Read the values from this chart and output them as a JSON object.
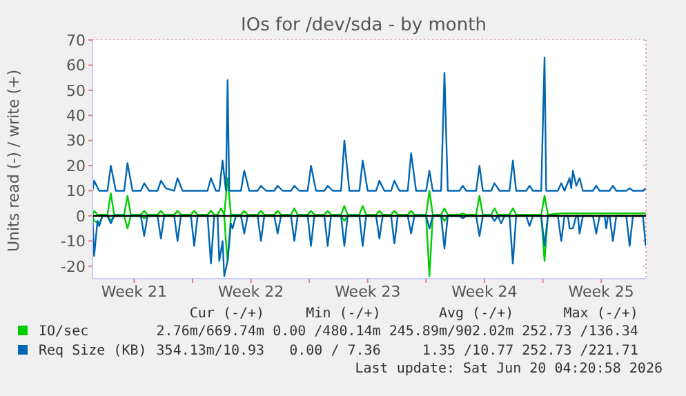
{
  "chart_data": {
    "type": "line",
    "title": "IOs for /dev/sda - by month",
    "ylabel": "Units read (-) / write (+)",
    "xlim": [
      "2026-05-18T00:00",
      "2026-06-20T04:20"
    ],
    "xticks": [
      {
        "value": "2026-05-20T12:00",
        "label": "Week 21"
      },
      {
        "value": "2026-05-24T00:00",
        "label": null
      },
      {
        "value": "2026-05-27T12:00",
        "label": "Week 22"
      },
      {
        "value": "2026-05-31T00:00",
        "label": null
      },
      {
        "value": "2026-06-03T12:00",
        "label": "Week 23"
      },
      {
        "value": "2026-06-07T00:00",
        "label": null
      },
      {
        "value": "2026-06-10T12:00",
        "label": "Week 24"
      },
      {
        "value": "2026-06-14T00:00",
        "label": null
      },
      {
        "value": "2026-06-17T12:00",
        "label": "Week 25"
      }
    ],
    "ylim": [
      -25,
      70
    ],
    "yticks": [
      -20,
      -10,
      0,
      10,
      20,
      30,
      40,
      50,
      60,
      70
    ],
    "grid": true,
    "legend": "bottom",
    "line_style": "solid",
    "marker": "none",
    "ref_lines": [
      {
        "axis": "y",
        "value": 0,
        "color": "#000000"
      }
    ],
    "series": [
      {
        "name": "IO/sec",
        "color": "#00cc00",
        "x": [
          "2026-05-18T00:00",
          "2026-05-18T02:24",
          "2026-05-18T07:12",
          "2026-05-18T21:36",
          "2026-05-19T02:24",
          "2026-05-19T07:12",
          "2026-05-19T21:36",
          "2026-05-20T02:24",
          "2026-05-20T07:12",
          "2026-05-20T21:36",
          "2026-05-21T02:24",
          "2026-05-21T07:12",
          "2026-05-21T21:36",
          "2026-05-22T02:24",
          "2026-05-22T07:12",
          "2026-05-22T21:36",
          "2026-05-23T02:24",
          "2026-05-23T07:12",
          "2026-05-23T21:36",
          "2026-05-24T02:24",
          "2026-05-24T07:12",
          "2026-05-24T21:36",
          "2026-05-25T02:24",
          "2026-05-25T07:12",
          "2026-05-25T12:00",
          "2026-05-25T16:48",
          "2026-05-25T21:36",
          "2026-05-26T02:24",
          "2026-05-26T07:12",
          "2026-05-26T21:36",
          "2026-05-27T02:24",
          "2026-05-27T07:12",
          "2026-05-27T21:36",
          "2026-05-28T02:24",
          "2026-05-28T07:12",
          "2026-05-28T21:36",
          "2026-05-29T02:24",
          "2026-05-29T07:12",
          "2026-05-29T21:36",
          "2026-05-30T02:24",
          "2026-05-30T07:12",
          "2026-05-30T21:36",
          "2026-05-31T02:24",
          "2026-05-31T07:12",
          "2026-05-31T21:36",
          "2026-06-01T02:24",
          "2026-06-01T07:12",
          "2026-06-01T21:36",
          "2026-06-02T02:24",
          "2026-06-02T07:12",
          "2026-06-03T00:00",
          "2026-06-03T04:48",
          "2026-06-03T09:36",
          "2026-06-04T00:00",
          "2026-06-04T04:48",
          "2026-06-04T09:36",
          "2026-06-04T21:36",
          "2026-06-05T02:24",
          "2026-06-05T07:12",
          "2026-06-05T21:36",
          "2026-06-06T02:24",
          "2026-06-06T07:12",
          "2026-06-07T00:00",
          "2026-06-07T04:48",
          "2026-06-07T09:36",
          "2026-06-07T21:36",
          "2026-06-08T02:24",
          "2026-06-08T07:12",
          "2026-06-09T00:00",
          "2026-06-09T04:48",
          "2026-06-09T09:36",
          "2026-06-10T00:00",
          "2026-06-10T04:48",
          "2026-06-10T09:36",
          "2026-06-10T21:36",
          "2026-06-11T02:24",
          "2026-06-11T07:12",
          "2026-06-12T00:00",
          "2026-06-12T04:48",
          "2026-06-12T09:36",
          "2026-06-13T21:36",
          "2026-06-14T02:24",
          "2026-06-14T07:12",
          "2026-06-15T02:24",
          "2026-06-15T19:12",
          "2026-06-17T04:48",
          "2026-06-20T04:00"
        ],
        "values": [
          0.5,
          2,
          0.5,
          0.5,
          9,
          0.5,
          0.5,
          8,
          0.5,
          0.5,
          2,
          0.5,
          0.5,
          2,
          0.5,
          0.5,
          2,
          0.5,
          0.5,
          2,
          0.5,
          0.5,
          2,
          0.5,
          0.5,
          3,
          0.5,
          15,
          0.5,
          0.5,
          2,
          0.5,
          0.5,
          2,
          0.5,
          0.5,
          2,
          0.5,
          0.5,
          3,
          0.5,
          0.5,
          2,
          0.5,
          0.5,
          2,
          0.5,
          0.5,
          4,
          0.5,
          0.5,
          4,
          0.5,
          0.5,
          2,
          0.5,
          0.5,
          2,
          0.5,
          0.5,
          2,
          0.5,
          0.5,
          10,
          0.5,
          0.5,
          3,
          0.5,
          0.5,
          1,
          0.5,
          0.5,
          8,
          0.5,
          0.5,
          3,
          0.5,
          0.5,
          3,
          0.5,
          0.5,
          8,
          0.5,
          1,
          1,
          1,
          1
        ]
      },
      {
        "color": "#00cc00",
        "x": [
          "2026-05-18T00:00",
          "2026-05-18T02:24",
          "2026-05-18T09:36",
          "2026-05-18T14:24",
          "2026-05-18T21:36",
          "2026-05-19T02:24",
          "2026-05-19T07:12",
          "2026-05-19T21:36",
          "2026-05-20T02:24",
          "2026-05-20T07:12",
          "2026-05-20T21:36",
          "2026-05-21T02:24",
          "2026-05-21T07:12",
          "2026-05-25T21:36",
          "2026-05-26T00:00",
          "2026-05-26T02:24",
          "2026-05-26T07:12",
          "2026-06-01T21:36",
          "2026-06-02T02:24",
          "2026-06-02T07:12",
          "2026-06-07T00:00",
          "2026-06-07T04:48",
          "2026-06-07T09:36",
          "2026-06-07T21:36",
          "2026-06-08T02:24",
          "2026-06-08T07:12",
          "2026-06-13T21:36",
          "2026-06-14T02:24",
          "2026-06-14T07:12",
          "2026-06-20T04:00"
        ],
        "values": [
          0,
          -2,
          -3,
          0,
          0,
          -2,
          0,
          0,
          -5,
          0,
          0,
          -1,
          0,
          0,
          -10,
          -18,
          0,
          0,
          -2,
          0,
          0,
          -24,
          0,
          0,
          -2,
          0,
          0,
          -18,
          0,
          0
        ]
      },
      {
        "name": "Req Size (KB)",
        "color": "#0066b3",
        "x": [
          "2026-05-18T00:00",
          "2026-05-18T02:24",
          "2026-05-18T09:36",
          "2026-05-18T21:36",
          "2026-05-19T02:24",
          "2026-05-19T09:36",
          "2026-05-19T21:36",
          "2026-05-20T02:24",
          "2026-05-20T09:36",
          "2026-05-20T21:36",
          "2026-05-21T02:24",
          "2026-05-21T09:36",
          "2026-05-21T21:36",
          "2026-05-22T02:24",
          "2026-05-22T09:36",
          "2026-05-22T21:36",
          "2026-05-23T02:24",
          "2026-05-23T09:36",
          "2026-05-24T21:36",
          "2026-05-25T02:24",
          "2026-05-25T09:36",
          "2026-05-25T14:24",
          "2026-05-25T19:12",
          "2026-05-26T00:00",
          "2026-05-26T02:24",
          "2026-05-26T04:48",
          "2026-05-26T21:36",
          "2026-05-27T02:24",
          "2026-05-27T09:36",
          "2026-05-27T21:36",
          "2026-05-28T02:24",
          "2026-05-28T09:36",
          "2026-05-28T21:36",
          "2026-05-29T02:24",
          "2026-05-29T09:36",
          "2026-05-29T21:36",
          "2026-05-30T02:24",
          "2026-05-30T09:36",
          "2026-05-30T21:36",
          "2026-05-31T02:24",
          "2026-05-31T09:36",
          "2026-05-31T21:36",
          "2026-06-01T02:24",
          "2026-06-01T09:36",
          "2026-06-01T21:36",
          "2026-06-02T02:24",
          "2026-06-02T09:36",
          "2026-06-03T00:00",
          "2026-06-03T04:48",
          "2026-06-03T12:00",
          "2026-06-04T00:00",
          "2026-06-04T04:48",
          "2026-06-04T12:00",
          "2026-06-04T21:36",
          "2026-06-05T02:24",
          "2026-06-05T09:36",
          "2026-06-05T21:36",
          "2026-06-06T02:24",
          "2026-06-06T09:36",
          "2026-06-07T00:00",
          "2026-06-07T04:48",
          "2026-06-07T09:36",
          "2026-06-07T21:36",
          "2026-06-08T02:24",
          "2026-06-08T07:12",
          "2026-06-09T00:00",
          "2026-06-09T04:48",
          "2026-06-09T09:36",
          "2026-06-10T00:00",
          "2026-06-10T04:48",
          "2026-06-10T09:36",
          "2026-06-10T21:36",
          "2026-06-11T02:24",
          "2026-06-11T09:36",
          "2026-06-12T00:00",
          "2026-06-12T04:48",
          "2026-06-12T09:36",
          "2026-06-13T00:00",
          "2026-06-13T04:48",
          "2026-06-13T09:36",
          "2026-06-13T21:36",
          "2026-06-14T02:24",
          "2026-06-14T04:48",
          "2026-06-14T21:36",
          "2026-06-15T02:24",
          "2026-06-15T07:12",
          "2026-06-15T14:24",
          "2026-06-15T16:48",
          "2026-06-15T19:12",
          "2026-06-16T00:00",
          "2026-06-16T04:48",
          "2026-06-16T09:36",
          "2026-06-17T00:00",
          "2026-06-17T04:48",
          "2026-06-17T09:36",
          "2026-06-18T00:00",
          "2026-06-18T04:48",
          "2026-06-18T09:36",
          "2026-06-19T00:00",
          "2026-06-19T04:48",
          "2026-06-19T09:36",
          "2026-06-20T00:00",
          "2026-06-20T04:00"
        ],
        "values": [
          10,
          14,
          10,
          10,
          20,
          10,
          10,
          21,
          10,
          10,
          13,
          10,
          10,
          14,
          11,
          10,
          15,
          10,
          10,
          15,
          10,
          10,
          22,
          10,
          54,
          10,
          10,
          18,
          10,
          10,
          12,
          10,
          10,
          12,
          10,
          10,
          12,
          10,
          10,
          20,
          10,
          10,
          12,
          10,
          10,
          30,
          10,
          10,
          22,
          10,
          10,
          14,
          10,
          10,
          14,
          10,
          10,
          25,
          10,
          10,
          18,
          10,
          10,
          57,
          10,
          10,
          12,
          10,
          10,
          20,
          10,
          10,
          13,
          10,
          10,
          22,
          10,
          10,
          12,
          10,
          10,
          63,
          10,
          10,
          13,
          10,
          15,
          11,
          18,
          12,
          15,
          10,
          10,
          12,
          10,
          10,
          12,
          10,
          10,
          11,
          10,
          10,
          11
        ]
      },
      {
        "color": "#0066b3",
        "x": [
          "2026-05-18T00:00",
          "2026-05-18T02:24",
          "2026-05-18T07:12",
          "2026-05-18T09:36",
          "2026-05-18T14:24",
          "2026-05-18T21:36",
          "2026-05-19T02:24",
          "2026-05-19T07:12",
          "2026-05-20T21:36",
          "2026-05-21T02:24",
          "2026-05-21T07:12",
          "2026-05-21T21:36",
          "2026-05-22T02:24",
          "2026-05-22T07:12",
          "2026-05-22T21:36",
          "2026-05-23T02:24",
          "2026-05-23T07:12",
          "2026-05-23T21:36",
          "2026-05-24T02:24",
          "2026-05-24T07:12",
          "2026-05-24T21:36",
          "2026-05-25T02:24",
          "2026-05-25T07:12",
          "2026-05-25T12:00",
          "2026-05-25T14:24",
          "2026-05-25T19:12",
          "2026-05-25T21:36",
          "2026-05-26T02:24",
          "2026-05-26T07:12",
          "2026-05-26T09:36",
          "2026-05-26T14:24",
          "2026-05-26T21:36",
          "2026-05-27T02:24",
          "2026-05-27T07:12",
          "2026-05-27T21:36",
          "2026-05-28T02:24",
          "2026-05-28T07:12",
          "2026-05-28T21:36",
          "2026-05-29T02:24",
          "2026-05-29T07:12",
          "2026-05-29T21:36",
          "2026-05-30T02:24",
          "2026-05-30T07:12",
          "2026-05-30T21:36",
          "2026-05-31T02:24",
          "2026-05-31T07:12",
          "2026-05-31T21:36",
          "2026-06-01T02:24",
          "2026-06-01T07:12",
          "2026-06-01T21:36",
          "2026-06-02T02:24",
          "2026-06-02T07:12",
          "2026-06-03T00:00",
          "2026-06-03T04:48",
          "2026-06-03T09:36",
          "2026-06-04T00:00",
          "2026-06-04T04:48",
          "2026-06-04T09:36",
          "2026-06-04T21:36",
          "2026-06-05T02:24",
          "2026-06-05T07:12",
          "2026-06-05T21:36",
          "2026-06-06T02:24",
          "2026-06-06T07:12",
          "2026-06-07T00:00",
          "2026-06-07T04:48",
          "2026-06-07T09:36",
          "2026-06-07T21:36",
          "2026-06-08T02:24",
          "2026-06-08T07:12",
          "2026-06-09T00:00",
          "2026-06-09T04:48",
          "2026-06-09T09:36",
          "2026-06-10T00:00",
          "2026-06-10T04:48",
          "2026-06-10T09:36",
          "2026-06-10T21:36",
          "2026-06-11T02:24",
          "2026-06-11T07:12",
          "2026-06-11T12:00",
          "2026-06-11T16:48",
          "2026-06-12T00:00",
          "2026-06-12T04:48",
          "2026-06-12T09:36",
          "2026-06-13T00:00",
          "2026-06-13T04:48",
          "2026-06-13T09:36",
          "2026-06-13T21:36",
          "2026-06-14T02:24",
          "2026-06-14T07:12",
          "2026-06-14T21:36",
          "2026-06-15T02:24",
          "2026-06-15T07:12",
          "2026-06-15T12:00",
          "2026-06-15T14:24",
          "2026-06-15T19:12",
          "2026-06-16T00:00",
          "2026-06-16T02:24",
          "2026-06-16T04:48",
          "2026-06-16T09:36",
          "2026-06-17T00:00",
          "2026-06-17T04:48",
          "2026-06-17T09:36",
          "2026-06-17T16:48",
          "2026-06-17T19:12",
          "2026-06-17T21:36",
          "2026-06-18T00:00",
          "2026-06-18T04:48",
          "2026-06-18T09:36",
          "2026-06-19T00:00",
          "2026-06-19T04:48",
          "2026-06-19T09:36",
          "2026-06-20T00:00",
          "2026-06-20T04:00"
        ],
        "values": [
          0,
          -16,
          -2,
          -4,
          0,
          0,
          -3,
          0,
          0,
          -8,
          0,
          0,
          -9,
          0,
          0,
          -10,
          0,
          0,
          -12,
          0,
          0,
          -19,
          0,
          0,
          -18,
          -10,
          -24,
          -18,
          -3,
          -5,
          0,
          0,
          -7,
          0,
          0,
          -10,
          0,
          0,
          -7,
          0,
          0,
          -10,
          0,
          0,
          -12,
          0,
          0,
          -12,
          0,
          0,
          -12,
          0,
          0,
          -12,
          0,
          0,
          -9,
          0,
          0,
          -11,
          0,
          0,
          -7,
          0,
          0,
          -5,
          0,
          0,
          -13,
          0,
          0,
          -1,
          0,
          0,
          -8,
          0,
          0,
          -2,
          0,
          -3,
          0,
          0,
          -19,
          0,
          0,
          -4,
          0,
          0,
          -12,
          0,
          0,
          -10,
          0,
          0,
          -5,
          -5,
          0,
          0,
          -7,
          0,
          0,
          -7,
          0,
          0,
          -5,
          0,
          0,
          -10,
          0,
          0,
          -12,
          0,
          0,
          -12
        ]
      }
    ],
    "annotations": [
      "Cur (-/+)",
      "Min (-/+)",
      "Avg (-/+)",
      "Max (-/+)",
      "2.76m/669.74m",
      "0.00 /480.14m",
      "245.89m/902.02m",
      "252.73 /136.34",
      "354.13m/10.93",
      "0.00 / 7.36",
      "1.35 /10.77",
      "252.73 /221.71",
      "Last update: Sat Jun 20 04:20:58 2026"
    ]
  }
}
